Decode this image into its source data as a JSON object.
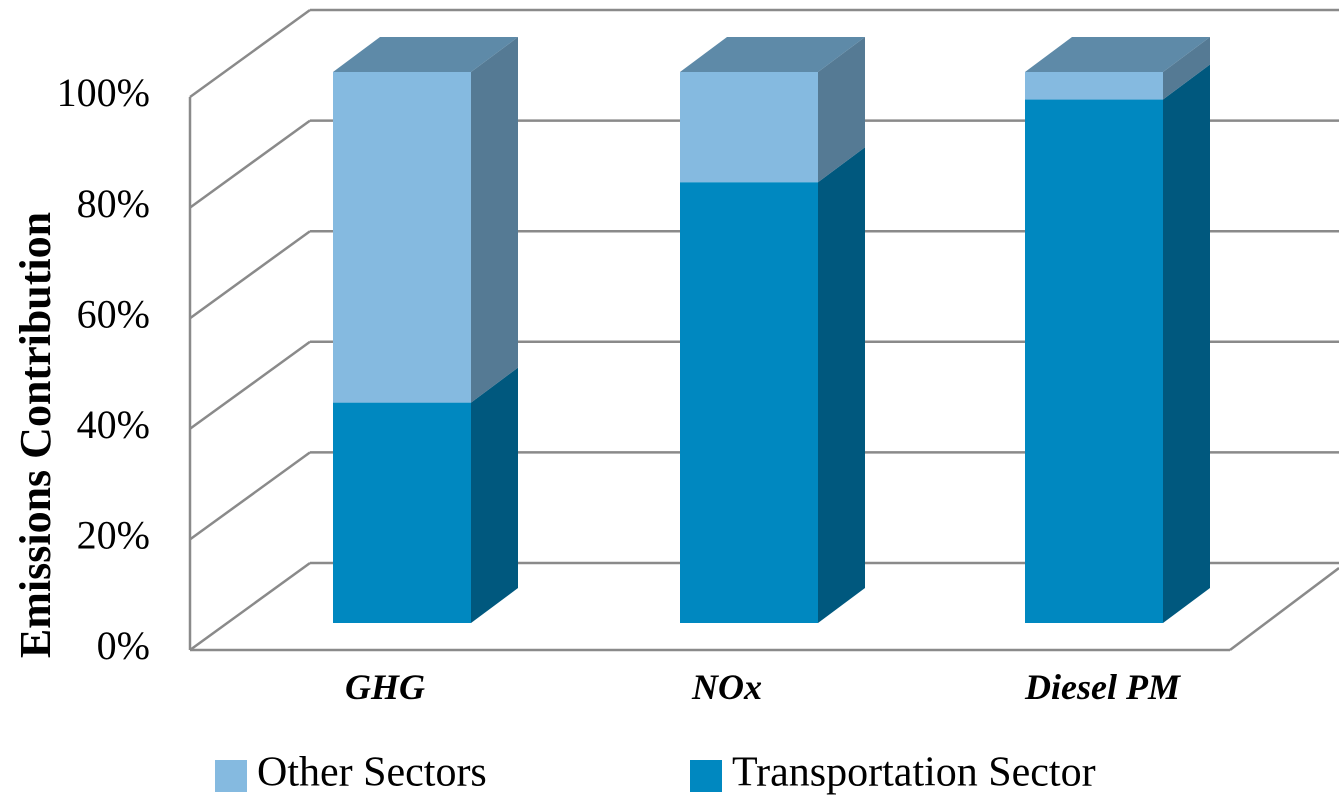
{
  "chart_data": {
    "type": "bar3d_stacked",
    "y_label": "Emissions Contribution",
    "categories": [
      "GHG",
      "NOx",
      "Diesel PM"
    ],
    "series": [
      {
        "name": "Other Sectors",
        "color": "#85bae0",
        "values": [
          60,
          20,
          5
        ]
      },
      {
        "name": "Transportation Sector",
        "color": "#0088c0",
        "values": [
          40,
          80,
          95
        ]
      }
    ],
    "ylim": [
      0,
      100
    ],
    "yticks": [
      {
        "value": 0,
        "label": "0%"
      },
      {
        "value": 20,
        "label": "20%"
      },
      {
        "value": 40,
        "label": "40%"
      },
      {
        "value": 60,
        "label": "60%"
      },
      {
        "value": 80,
        "label": "80%"
      },
      {
        "value": 100,
        "label": "100%"
      }
    ],
    "grid": true
  }
}
